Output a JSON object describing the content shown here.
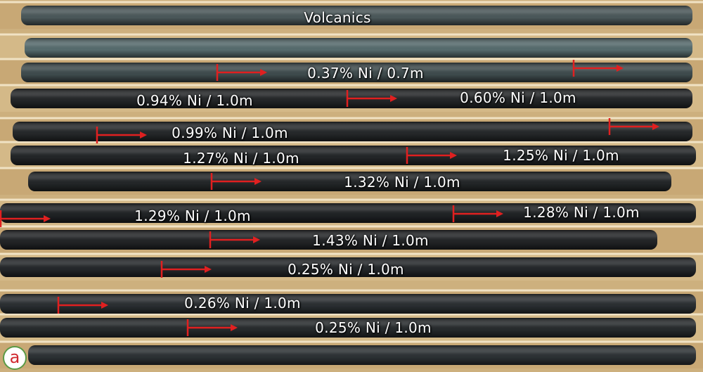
{
  "photo": {
    "subject": "drill-core-tray",
    "marker_color": "#e02020",
    "label_color": "#ffffff"
  },
  "header_label": "Volcanics",
  "intervals": [
    {
      "text": "0.37% Ni / 0.7m"
    },
    {
      "text": "0.94% Ni / 1.0m"
    },
    {
      "text": "0.60% Ni / 1.0m"
    },
    {
      "text": "0.99% Ni / 1.0m"
    },
    {
      "text": "1.27% Ni / 1.0m"
    },
    {
      "text": "1.25% Ni / 1.0m"
    },
    {
      "text": "1.32% Ni / 1.0m"
    },
    {
      "text": "1.29% Ni / 1.0m"
    },
    {
      "text": "1.28% Ni / 1.0m"
    },
    {
      "text": "1.43% Ni / 1.0m"
    },
    {
      "text": "0.25% Ni / 1.0m"
    },
    {
      "text": "0.26% Ni / 1.0m"
    },
    {
      "text": "0.25% Ni / 1.0m"
    }
  ],
  "panel_label": "a"
}
